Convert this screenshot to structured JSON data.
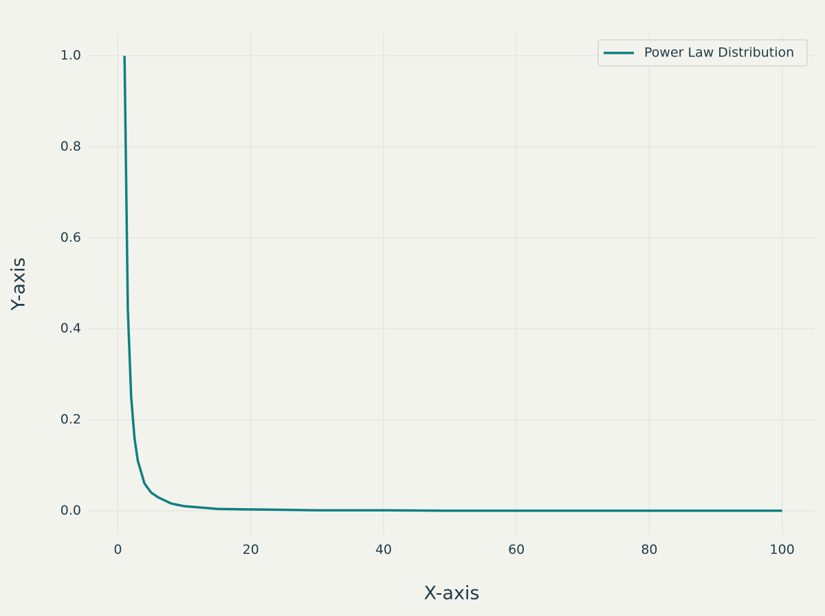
{
  "chart_data": {
    "type": "line",
    "xlabel": "X-axis",
    "ylabel": "Y-axis",
    "x": [
      1,
      1.5,
      2,
      2.5,
      3,
      4,
      5,
      6,
      8,
      10,
      15,
      20,
      30,
      40,
      50,
      60,
      70,
      80,
      90,
      100
    ],
    "series": [
      {
        "name": "Power Law Distribution",
        "color": "#0f8080",
        "values": [
          1,
          0.44,
          0.25,
          0.16,
          0.11,
          0.06,
          0.04,
          0.03,
          0.016,
          0.01,
          0.004,
          0.003,
          0.001,
          0.001,
          0,
          0,
          0,
          0,
          0,
          0
        ]
      }
    ],
    "xlim": [
      -4.5,
      104.9
    ],
    "ylim": [
      -0.053,
      1.05
    ],
    "xticks": [
      0,
      20,
      40,
      60,
      80,
      100
    ],
    "yticks": [
      {
        "value": 0,
        "label": "0.0"
      },
      0.2,
      0.4,
      0.6,
      0.8,
      {
        "value": 1,
        "label": "1.0"
      }
    ],
    "grid": true,
    "legend": "upper right"
  }
}
